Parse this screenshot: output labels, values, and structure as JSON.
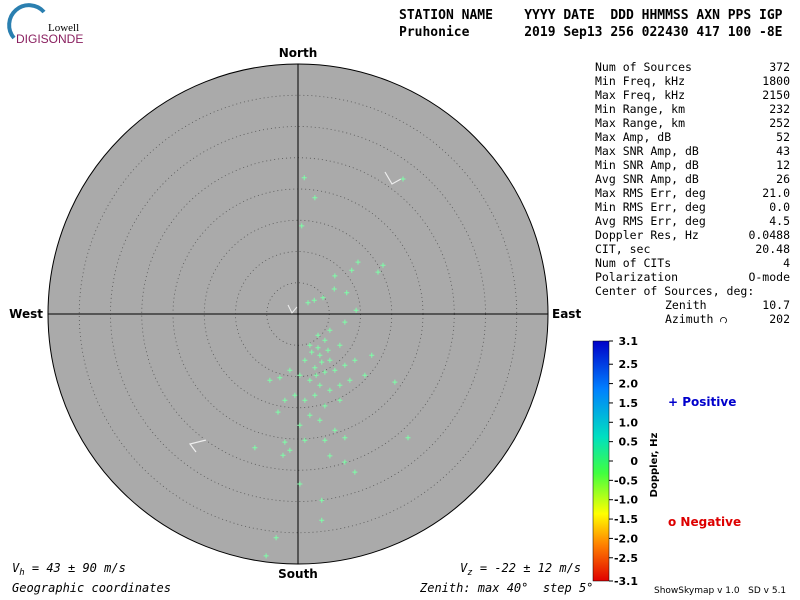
{
  "chart_data": {
    "type": "scatter",
    "projection": "polar",
    "logo": {
      "top": "Lowell",
      "bottom": "DIGISONDE"
    },
    "header": {
      "labels": "STATION NAME    YYYY DATE  DDD HHMMSS AXN PPS IGP",
      "values": "Pruhonice       2019 Sep13 256 022430 417 100 -8E"
    },
    "compass": {
      "north": "North",
      "south": "South",
      "east": "East",
      "west": "West"
    },
    "stats": [
      [
        "Num of Sources",
        "372"
      ],
      [
        "Min Freq, kHz",
        "1800"
      ],
      [
        "Max Freq, kHz",
        "2150"
      ],
      [
        "Min Range, km",
        "232"
      ],
      [
        "Max Range, km",
        "252"
      ],
      [
        "Max Amp, dB",
        "52"
      ],
      [
        "Max SNR Amp, dB",
        "43"
      ],
      [
        "Min SNR Amp, dB",
        "12"
      ],
      [
        "Avg SNR Amp, dB",
        "26"
      ],
      [
        "Max RMS Err, deg",
        "21.0"
      ],
      [
        "Min RMS Err, deg",
        "0.0"
      ],
      [
        "Avg RMS Err, deg",
        "4.5"
      ],
      [
        "Doppler Res, Hz",
        "0.0488"
      ],
      [
        "CIT, sec",
        "20.48"
      ],
      [
        "Num of CITs",
        "4"
      ],
      [
        "Polarization",
        "O-mode"
      ]
    ],
    "center": {
      "title": "Center of Sources, deg:",
      "zenith": [
        "Zenith",
        "10.7"
      ],
      "azimuth": [
        "Azimuth",
        "202"
      ]
    },
    "colorbar": {
      "title": "Doppler, Hz",
      "clim": [
        -3.1,
        3.1
      ],
      "ticks": [
        3.1,
        2.5,
        {
          "value": 2,
          "label": "2.0"
        },
        1.5,
        {
          "value": 1,
          "label": "1.0"
        },
        0.5,
        0,
        -0.5,
        {
          "value": -1,
          "label": "-1.0"
        },
        -1.5,
        {
          "value": -2,
          "label": "-2.0"
        },
        -2.5,
        -3.1
      ]
    },
    "legend": {
      "positive": "+ Positive",
      "negative": "o Negative"
    },
    "vh": {
      "symbol": "V",
      "sub": "h",
      "text": " = 43 ± 90 m/s"
    },
    "vz": {
      "symbol": "V",
      "sub": "z",
      "text": " = -22 ± 12 m/s"
    },
    "footer": {
      "coords": "Geographic coordinates",
      "zenith": "Zenith: max 40°  step 5°",
      "version": "ShowSkymap v 1.0   SD v 5.1"
    },
    "rlim": [
      0,
      40
    ],
    "rstep": 5,
    "point_color": "#7dffa8",
    "points": {
      "x": [
        1.0,
        2.7,
        0.6,
        16.8,
        9.6,
        12.8,
        13.6,
        8.6,
        5.9,
        5.8,
        7.8,
        4.0,
        9.3,
        2.6,
        1.6,
        7.5,
        5.1,
        3.2,
        4.3,
        6.7,
        1.9,
        1.1,
        3.5,
        5.1,
        2.7,
        4.3,
        5.9,
        7.5,
        9.1,
        10.7,
        11.8,
        1.9,
        0.3,
        -1.3,
        -2.9,
        -4.5,
        3.5,
        5.1,
        6.7,
        8.3,
        15.5,
        2.7,
        1.1,
        -0.5,
        -2.1,
        -3.2,
        4.3,
        6.7,
        1.9,
        3.5,
        0.3,
        5.9,
        7.5,
        17.6,
        4.3,
        1.1,
        -2.1,
        -6.9,
        -1.3,
        5.1,
        7.5,
        -2.4,
        9.1,
        0.3,
        3.8,
        3.8,
        -3.5,
        -5.1,
        3.2,
        3.8,
        2.2,
        4.8,
        2.9
      ],
      "y": [
        21.8,
        18.6,
        14.1,
        21.6,
        8.3,
        6.7,
        7.8,
        7.0,
        6.1,
        4.0,
        3.4,
        2.6,
        0.6,
        2.2,
        1.8,
        -1.3,
        -2.6,
        -3.4,
        -4.2,
        -5.0,
        -5.0,
        -7.4,
        -6.6,
        -7.4,
        -8.6,
        -9.3,
        -9.0,
        -8.2,
        -7.4,
        -9.8,
        -6.6,
        -10.6,
        -9.8,
        -9.0,
        -10.2,
        -10.6,
        -11.4,
        -12.2,
        -11.4,
        -10.6,
        -10.9,
        -13.0,
        -13.8,
        -13.0,
        -13.8,
        -15.7,
        -14.7,
        -13.8,
        -16.2,
        -17.0,
        -17.8,
        -18.6,
        -19.8,
        -19.8,
        -20.2,
        -20.2,
        -20.5,
        -21.4,
        -21.8,
        -22.7,
        -23.7,
        -22.6,
        -25.3,
        -27.2,
        -29.8,
        -33.0,
        -35.8,
        -38.7,
        -5.4,
        -7.7,
        -6.1,
        -5.8,
        -9.8
      ]
    }
  }
}
